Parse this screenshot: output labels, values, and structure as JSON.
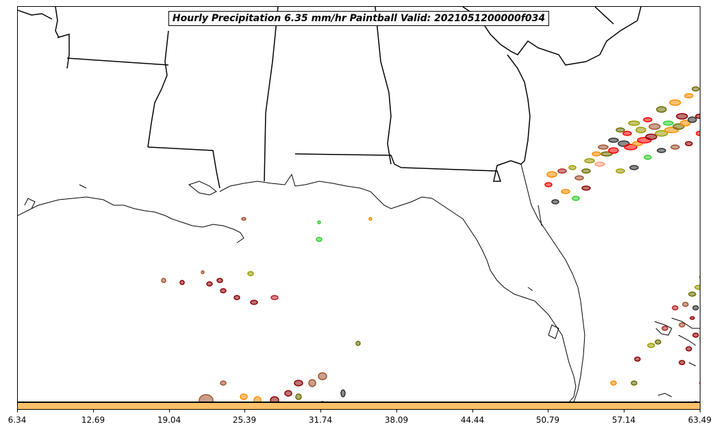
{
  "title": "Hourly Precipitation 6.35 mm/hr Paintball Valid: 2021051200000f034",
  "colorbar": {
    "color": "#ffc06a",
    "ticks": [
      "6.34",
      "12.69",
      "19.04",
      "25.39",
      "31.74",
      "38.09",
      "44.44",
      "50.79",
      "57.14",
      "63.49"
    ]
  },
  "map": {
    "region": "Southeastern United States and Gulf of Mexico",
    "land_color": "#ffffff",
    "boundary_color": "#000000",
    "paintball_colors": [
      "#8b0000",
      "#a0522d",
      "#ff8c00",
      "#ff0000",
      "#2e2e2e",
      "#6b6b00",
      "#9a9a00",
      "#32cd32",
      "#ffa07a",
      "#b22222"
    ]
  }
}
